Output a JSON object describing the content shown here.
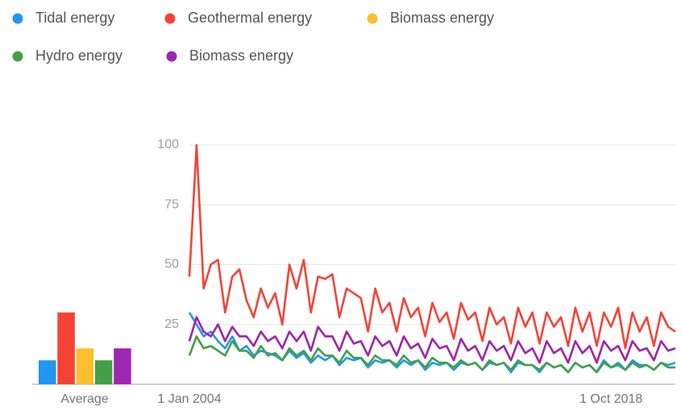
{
  "chart_data": [
    {
      "type": "line",
      "categories": [
        "1 Jan 2004",
        null,
        null,
        null,
        null,
        null,
        null,
        null,
        null,
        null,
        null,
        null,
        null,
        null,
        null,
        null,
        null,
        null,
        null,
        null,
        null,
        null,
        null,
        null,
        null,
        null,
        null,
        null,
        null,
        null,
        null,
        null,
        null,
        null,
        null,
        null,
        null,
        null,
        null,
        null,
        null,
        null,
        null,
        null,
        null,
        null,
        null,
        null,
        null,
        null,
        null,
        null,
        null,
        null,
        null,
        null,
        null,
        null,
        null,
        "1 Oct 2018",
        null,
        null,
        null,
        null,
        null,
        null,
        null,
        null,
        null
      ],
      "series": [
        {
          "name": "Tidal energy",
          "color": "#2196f3",
          "values": [
            30,
            25,
            20,
            22,
            18,
            15,
            20,
            14,
            16,
            12,
            14,
            13,
            12,
            10,
            14,
            11,
            13,
            9,
            12,
            10,
            12,
            8,
            11,
            10,
            11,
            7,
            10,
            9,
            10,
            7,
            10,
            8,
            10,
            6,
            9,
            8,
            9,
            6,
            9,
            8,
            9,
            6,
            9,
            8,
            9,
            5,
            9,
            8,
            8,
            5,
            9,
            7,
            8,
            5,
            9,
            7,
            8,
            5,
            10,
            7,
            9,
            6,
            10,
            8,
            8,
            6,
            9,
            8,
            9
          ]
        },
        {
          "name": "Geothermal energy",
          "color": "#f44336",
          "values": [
            45,
            100,
            40,
            50,
            52,
            30,
            45,
            48,
            35,
            28,
            40,
            32,
            38,
            25,
            50,
            40,
            52,
            30,
            45,
            44,
            46,
            28,
            40,
            38,
            36,
            22,
            40,
            30,
            34,
            22,
            36,
            28,
            32,
            20,
            34,
            26,
            30,
            19,
            34,
            27,
            30,
            18,
            32,
            25,
            28,
            17,
            32,
            24,
            30,
            17,
            30,
            24,
            28,
            16,
            32,
            22,
            30,
            16,
            30,
            24,
            32,
            15,
            30,
            22,
            28,
            16,
            30,
            24,
            22
          ]
        },
        {
          "name": "Biomass energy",
          "color": "#fbc02d",
          "values": [
            18,
            28,
            22,
            20,
            25,
            18,
            24,
            20,
            20,
            16,
            22,
            18,
            20,
            15,
            22,
            18,
            22,
            14,
            24,
            20,
            20,
            14,
            22,
            17,
            18,
            12,
            20,
            16,
            18,
            12,
            20,
            15,
            17,
            11,
            19,
            15,
            16,
            10,
            19,
            14,
            16,
            10,
            18,
            14,
            16,
            10,
            18,
            13,
            15,
            9,
            18,
            13,
            15,
            9,
            18,
            13,
            16,
            9,
            18,
            14,
            16,
            10,
            18,
            14,
            15,
            10,
            18,
            14,
            15
          ]
        },
        {
          "name": "Hydro energy",
          "color": "#43a047",
          "values": [
            12,
            20,
            15,
            16,
            14,
            12,
            18,
            14,
            14,
            11,
            16,
            12,
            13,
            10,
            15,
            12,
            14,
            10,
            15,
            12,
            12,
            9,
            14,
            11,
            11,
            8,
            12,
            10,
            10,
            8,
            12,
            9,
            10,
            7,
            11,
            9,
            9,
            7,
            10,
            8,
            9,
            6,
            10,
            8,
            9,
            6,
            10,
            8,
            8,
            6,
            9,
            7,
            8,
            5,
            9,
            7,
            8,
            5,
            9,
            7,
            8,
            6,
            9,
            7,
            8,
            6,
            9,
            7,
            7
          ]
        },
        {
          "name": "Biomass energy",
          "color": "#9c27b0",
          "values": [
            18,
            28,
            22,
            20,
            25,
            18,
            24,
            20,
            20,
            16,
            22,
            18,
            20,
            15,
            22,
            18,
            22,
            14,
            24,
            20,
            20,
            14,
            22,
            17,
            18,
            12,
            20,
            16,
            18,
            12,
            20,
            15,
            17,
            11,
            19,
            15,
            16,
            10,
            19,
            14,
            16,
            10,
            18,
            14,
            16,
            10,
            18,
            13,
            15,
            9,
            18,
            13,
            15,
            9,
            18,
            13,
            16,
            9,
            18,
            14,
            16,
            10,
            18,
            14,
            15,
            10,
            18,
            14,
            15
          ]
        }
      ],
      "ylim": [
        0,
        100
      ],
      "yticks": [
        25,
        50,
        75,
        100
      ],
      "grid": true
    },
    {
      "type": "bar",
      "xlabel": "Average",
      "values": [
        10,
        30,
        15,
        10,
        15
      ],
      "colors": [
        "#2196f3",
        "#f44336",
        "#fbc02d",
        "#43a047",
        "#9c27b0"
      ],
      "ylim": [
        0,
        100
      ]
    }
  ]
}
